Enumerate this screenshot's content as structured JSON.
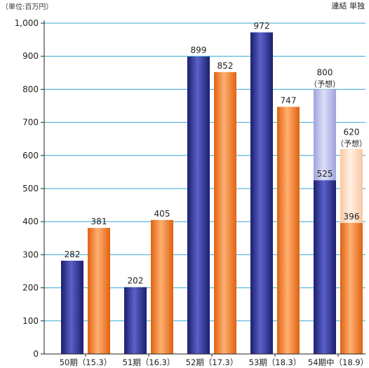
{
  "chart_data": {
    "type": "bar",
    "unit_label": "（単位:百万円）",
    "legend_text": "連結 単独",
    "categories": [
      "50期（15.3）",
      "51期（16.3）",
      "52期（17.3）",
      "53期（18.3）",
      "54期中（18.9）"
    ],
    "ylim": [
      0,
      1000
    ],
    "y_ticks": [
      "0",
      "100",
      "200",
      "300",
      "400",
      "500",
      "600",
      "700",
      "800",
      "900",
      "1,000"
    ],
    "grid": true,
    "series": [
      {
        "name": "連結",
        "values": [
          282,
          202,
          899,
          972,
          525
        ],
        "color": "#2c2c8c"
      },
      {
        "name": "単独",
        "values": [
          381,
          405,
          852,
          747,
          396
        ],
        "color": "#f07a2a"
      }
    ],
    "forecast": {
      "category": "54期中（18.9）",
      "note": "（予想）",
      "values": [
        800,
        620
      ],
      "colors": [
        "#b7b9e2",
        "#fbd5b8"
      ]
    },
    "labels": {
      "series0": [
        "282",
        "202",
        "899",
        "972",
        "525"
      ],
      "series1": [
        "381",
        "405",
        "852",
        "747",
        "396"
      ],
      "forecast": [
        "800",
        "620"
      ]
    }
  }
}
